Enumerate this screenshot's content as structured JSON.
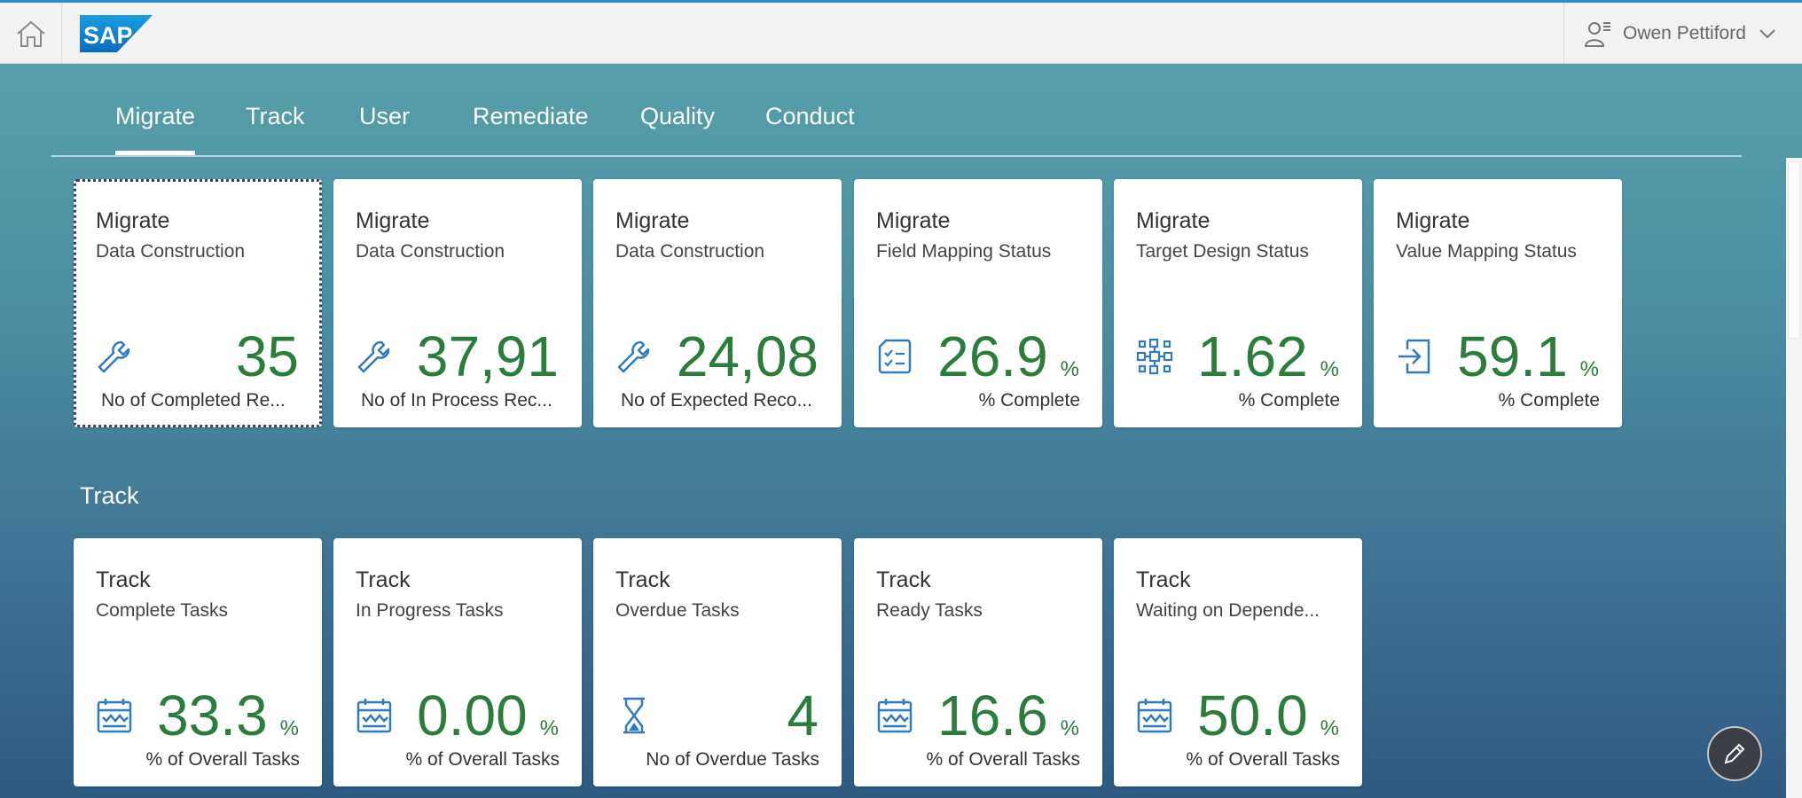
{
  "shell": {
    "logo_text": "SAP",
    "user_name": "Owen Pettiford"
  },
  "tabs": [
    {
      "label": "Migrate",
      "active": true
    },
    {
      "label": "Track",
      "active": false
    },
    {
      "label": "User",
      "active": false
    },
    {
      "label": "Remediate",
      "active": false
    },
    {
      "label": "Quality",
      "active": false
    },
    {
      "label": "Conduct",
      "active": false
    }
  ],
  "migrate_tiles": [
    {
      "title": "Migrate",
      "subtitle": "Data Construction",
      "icon": "wrench-icon",
      "value": "35",
      "unit": "",
      "footer": "No of Completed Re..."
    },
    {
      "title": "Migrate",
      "subtitle": "Data Construction",
      "icon": "wrench-icon",
      "value": "37,91",
      "unit": "",
      "footer": "No of In Process Rec..."
    },
    {
      "title": "Migrate",
      "subtitle": "Data Construction",
      "icon": "wrench-icon",
      "value": "24,08",
      "unit": "",
      "footer": "No of Expected Reco..."
    },
    {
      "title": "Migrate",
      "subtitle": "Field Mapping Status",
      "icon": "checklist-icon",
      "value": "26.9",
      "unit": "%",
      "footer": "% Complete"
    },
    {
      "title": "Migrate",
      "subtitle": "Target Design Status",
      "icon": "network-icon",
      "value": "1.62",
      "unit": "%",
      "footer": "% Complete"
    },
    {
      "title": "Migrate",
      "subtitle": "Value Mapping Status",
      "icon": "import-icon",
      "value": "59.1",
      "unit": "%",
      "footer": "% Complete"
    }
  ],
  "track_section": {
    "title": "Track"
  },
  "track_tiles": [
    {
      "title": "Track",
      "subtitle": "Complete Tasks",
      "icon": "task-calendar-icon",
      "value": "33.3",
      "unit": "%",
      "footer": "% of Overall Tasks"
    },
    {
      "title": "Track",
      "subtitle": "In Progress Tasks",
      "icon": "task-calendar-icon",
      "value": "0.00",
      "unit": "%",
      "footer": "% of Overall Tasks"
    },
    {
      "title": "Track",
      "subtitle": "Overdue Tasks",
      "icon": "hourglass-icon",
      "value": "4",
      "unit": "",
      "footer": "No of Overdue Tasks"
    },
    {
      "title": "Track",
      "subtitle": "Ready Tasks",
      "icon": "task-calendar-icon",
      "value": "16.6",
      "unit": "%",
      "footer": "% of Overall Tasks"
    },
    {
      "title": "Track",
      "subtitle": "Waiting on Depende...",
      "icon": "task-calendar-icon",
      "value": "50.0",
      "unit": "%",
      "footer": "% of Overall Tasks"
    }
  ],
  "colors": {
    "value_green": "#2b7c3d",
    "icon_blue": "#2f7bbd",
    "shell_accent": "#2a8ad8"
  },
  "fab": {
    "icon": "pencil-icon"
  }
}
